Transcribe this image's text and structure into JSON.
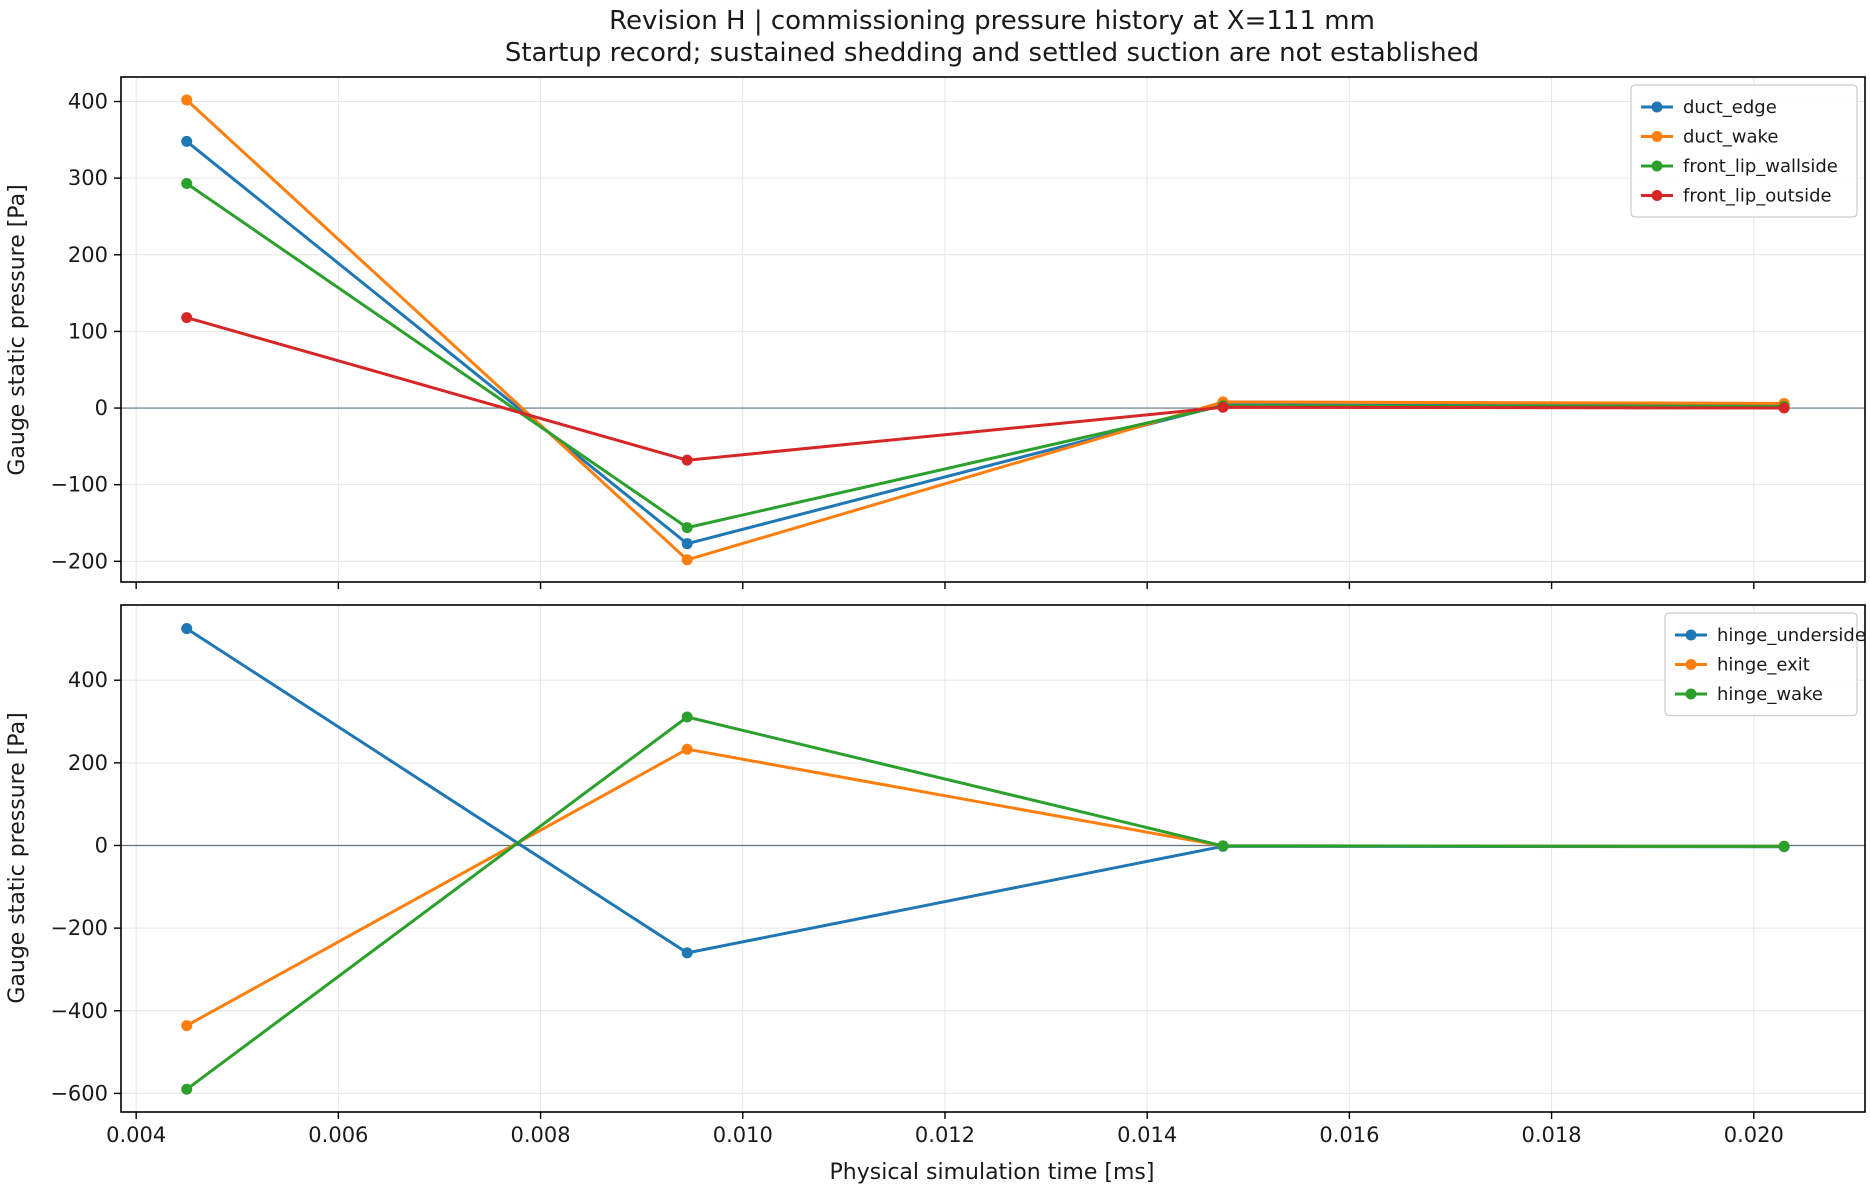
{
  "figure": {
    "title_line1": "Revision H | commissioning pressure history at X=111 mm",
    "title_line2": "Startup record; sustained shedding and settled suction are not established",
    "xlabel": "Physical simulation time [ms]"
  },
  "chart_data": [
    {
      "type": "line",
      "ylabel": "Gauge static pressure [Pa]",
      "x": [
        0.0045,
        0.00945,
        0.01475,
        0.0203
      ],
      "xlim": [
        0.00385,
        0.0211
      ],
      "ylim": [
        -227,
        432
      ],
      "yticks": [
        -200,
        -100,
        0,
        100,
        200,
        300,
        400
      ],
      "ytick_labels": [
        "−200",
        "−100",
        "0",
        "100",
        "200",
        "300",
        "400"
      ],
      "xticks": [
        0.004,
        0.006,
        0.008,
        0.01,
        0.012,
        0.014,
        0.016,
        0.018,
        0.02
      ],
      "xtick_labels": [],
      "grid": true,
      "zero_line": true,
      "legend_position": "top-right",
      "series": [
        {
          "name": "duct_edge",
          "color": "#1f77b4",
          "values": [
            348,
            -177,
            4,
            3
          ]
        },
        {
          "name": "duct_wake",
          "color": "#ff7f0e",
          "values": [
            402,
            -198,
            8,
            6
          ]
        },
        {
          "name": "front_lip_wallside",
          "color": "#2ca02c",
          "values": [
            293,
            -156,
            3,
            2
          ]
        },
        {
          "name": "front_lip_outside",
          "color": "#d62728",
          "values": [
            118,
            -68,
            1,
            0
          ]
        }
      ]
    },
    {
      "type": "line",
      "ylabel": "Gauge static pressure [Pa]",
      "x": [
        0.0045,
        0.00945,
        0.01475,
        0.0203
      ],
      "xlim": [
        0.00385,
        0.0211
      ],
      "ylim": [
        -645,
        582
      ],
      "yticks": [
        -600,
        -400,
        -200,
        0,
        200,
        400
      ],
      "ytick_labels": [
        "−600",
        "−400",
        "−200",
        "0",
        "200",
        "400"
      ],
      "xticks": [
        0.004,
        0.006,
        0.008,
        0.01,
        0.012,
        0.014,
        0.016,
        0.018,
        0.02
      ],
      "xtick_labels": [
        "0.004",
        "0.006",
        "0.008",
        "0.010",
        "0.012",
        "0.014",
        "0.016",
        "0.018",
        "0.020"
      ],
      "grid": true,
      "zero_line": true,
      "legend_position": "top-right",
      "series": [
        {
          "name": "hinge_underside",
          "color": "#1f77b4",
          "values": [
            525,
            -260,
            -2,
            -3
          ]
        },
        {
          "name": "hinge_exit",
          "color": "#ff7f0e",
          "values": [
            -436,
            233,
            -1,
            -2
          ]
        },
        {
          "name": "hinge_wake",
          "color": "#2ca02c",
          "values": [
            -590,
            311,
            -1,
            -2
          ]
        }
      ]
    }
  ]
}
